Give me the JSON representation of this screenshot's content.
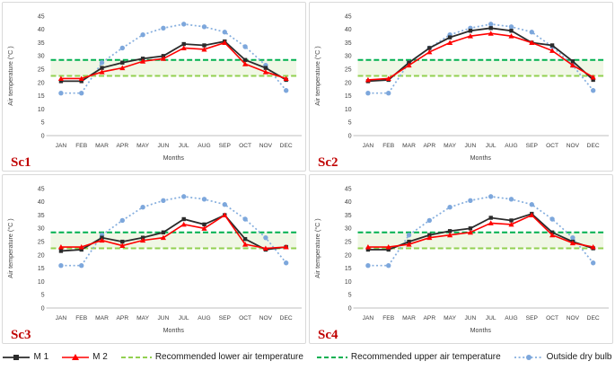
{
  "colors": {
    "m1": "#2b2b2b",
    "m2": "#ff0000",
    "lower": "#92d050",
    "upper": "#00b050",
    "outside_line": "#85aede",
    "outside_marker": "#7da7dc",
    "band_fill": "#f0f7e5",
    "axis_line": "#bfbfbf",
    "tick_text": "#404040",
    "scenario_label": "#c00000"
  },
  "chart_data": [
    {
      "type": "line",
      "label": "Sc1",
      "title": "",
      "xlabel": "Months",
      "ylabel": "Air temperature (°C )",
      "ylim": [
        0,
        45
      ],
      "yticks": [
        0,
        5,
        10,
        15,
        20,
        25,
        30,
        35,
        40,
        45
      ],
      "categories": [
        "JAN",
        "FEB",
        "MAR",
        "APR",
        "MAY",
        "JUN",
        "JUL",
        "AUG",
        "SEP",
        "OCT",
        "NOV",
        "DEC"
      ],
      "ref_lines": {
        "lower": 22.5,
        "upper": 28.5
      },
      "series": [
        {
          "name": "M 1",
          "values": [
            20.5,
            20.5,
            25.5,
            27.5,
            29,
            30,
            34.5,
            34,
            35.5,
            28.5,
            25.5,
            21
          ]
        },
        {
          "name": "M 2",
          "values": [
            21.5,
            21.5,
            24,
            25.5,
            28,
            29,
            33,
            32.5,
            35,
            27,
            24,
            21.5
          ]
        },
        {
          "name": "Outside dry bulb",
          "values": [
            16,
            16,
            27.5,
            33,
            38,
            40.5,
            42,
            41,
            39,
            33.5,
            26.5,
            17
          ]
        }
      ]
    },
    {
      "type": "line",
      "label": "Sc2",
      "title": "",
      "xlabel": "Months",
      "ylabel": "Air temperature (°C )",
      "ylim": [
        0,
        45
      ],
      "yticks": [
        0,
        5,
        10,
        15,
        20,
        25,
        30,
        35,
        40,
        45
      ],
      "categories": [
        "JAN",
        "FEB",
        "MAR",
        "APR",
        "MAY",
        "JUN",
        "JUL",
        "AUG",
        "SEP",
        "OCT",
        "NOV",
        "DEC"
      ],
      "ref_lines": {
        "lower": 22.5,
        "upper": 28.5
      },
      "series": [
        {
          "name": "M 1",
          "values": [
            20.5,
            21,
            27.5,
            33,
            37,
            39.5,
            40.5,
            39.5,
            35,
            34,
            28,
            21
          ]
        },
        {
          "name": "M 2",
          "values": [
            21,
            21.5,
            26.5,
            31.5,
            35,
            37.5,
            38.5,
            37.5,
            35,
            32,
            26.5,
            22
          ]
        },
        {
          "name": "Outside dry bulb",
          "values": [
            16,
            16,
            27.5,
            33,
            38,
            40.5,
            42,
            41,
            39,
            33.5,
            26.5,
            17
          ]
        }
      ]
    },
    {
      "type": "line",
      "label": "Sc3",
      "title": "",
      "xlabel": "Months",
      "ylabel": "Air temperature (°C )",
      "ylim": [
        0,
        45
      ],
      "yticks": [
        0,
        5,
        10,
        15,
        20,
        25,
        30,
        35,
        40,
        45
      ],
      "categories": [
        "JAN",
        "FEB",
        "MAR",
        "APR",
        "MAY",
        "JUN",
        "JUL",
        "AUG",
        "SEP",
        "OCT",
        "NOV",
        "DEC"
      ],
      "ref_lines": {
        "lower": 22.5,
        "upper": 28.5
      },
      "series": [
        {
          "name": "M 1",
          "values": [
            21.5,
            22,
            26.5,
            25,
            26.5,
            28.5,
            33.5,
            31.5,
            35,
            26,
            22,
            23
          ]
        },
        {
          "name": "M 2",
          "values": [
            23,
            23,
            25.5,
            23.5,
            25.5,
            26.5,
            31.5,
            30,
            35,
            24,
            22.5,
            23
          ]
        },
        {
          "name": "Outside dry bulb",
          "values": [
            16,
            16,
            27.5,
            33,
            38,
            40.5,
            42,
            41,
            39,
            33.5,
            26.5,
            17
          ]
        }
      ]
    },
    {
      "type": "line",
      "label": "Sc4",
      "title": "",
      "xlabel": "Months",
      "ylabel": "Air temperature (°C )",
      "ylim": [
        0,
        45
      ],
      "yticks": [
        0,
        5,
        10,
        15,
        20,
        25,
        30,
        35,
        40,
        45
      ],
      "categories": [
        "JAN",
        "FEB",
        "MAR",
        "APR",
        "MAY",
        "JUN",
        "JUL",
        "AUG",
        "SEP",
        "OCT",
        "NOV",
        "DEC"
      ],
      "ref_lines": {
        "lower": 22.5,
        "upper": 28.5
      },
      "series": [
        {
          "name": "M 1",
          "values": [
            22,
            22,
            25,
            27.5,
            29,
            30,
            34,
            33,
            35.5,
            28.5,
            25,
            22.5
          ]
        },
        {
          "name": "M 2",
          "values": [
            23,
            23,
            24,
            26.5,
            27.5,
            28.5,
            32,
            31.5,
            35,
            27.5,
            24.5,
            23
          ]
        },
        {
          "name": "Outside dry bulb",
          "values": [
            16,
            16,
            27.5,
            33,
            38,
            40.5,
            42,
            41,
            39,
            33.5,
            26.5,
            17
          ]
        }
      ]
    }
  ],
  "legend": {
    "items": [
      {
        "label": "M 1"
      },
      {
        "label": "M 2"
      },
      {
        "label": "Recommended lower air temperature"
      },
      {
        "label": "Recommended upper air temperature"
      },
      {
        "label": "Outside dry bulb"
      }
    ]
  }
}
